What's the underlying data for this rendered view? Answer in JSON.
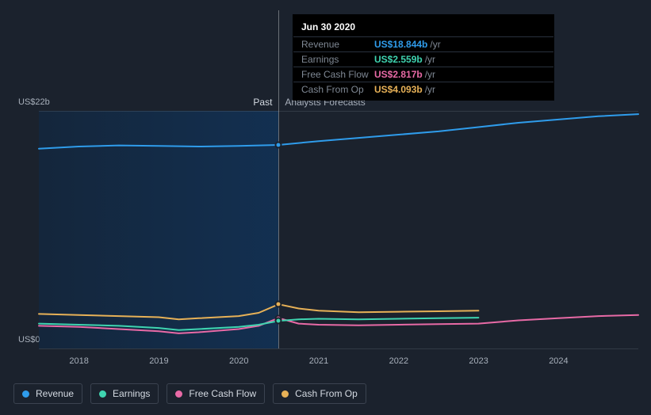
{
  "chart": {
    "background_color": "#1b222d",
    "text_color": "#a8b0bb",
    "grid_color": "rgba(120,130,145,0.25)",
    "past_bg_gradient": [
      "rgba(11,43,77,0.45)",
      "rgba(14,55,100,0.65)"
    ],
    "section_labels": {
      "past": "Past",
      "forecast": "Analysts Forecasts"
    },
    "x": {
      "domain": [
        2017.5,
        2025
      ],
      "ticks": [
        2018,
        2019,
        2020,
        2021,
        2022,
        2023,
        2024
      ],
      "tick_labels": [
        "2018",
        "2019",
        "2020",
        "2021",
        "2022",
        "2023",
        "2024"
      ],
      "past_end": 2020.5,
      "cursor": 2020.5,
      "label_fontsize": 11
    },
    "y": {
      "domain": [
        0,
        22
      ],
      "ticks": [
        0,
        22
      ],
      "tick_labels": [
        "US$0",
        "US$22b"
      ],
      "label_fontsize": 11
    },
    "series": [
      {
        "key": "revenue",
        "name": "Revenue",
        "color": "#2f9ceb",
        "line_width": 2,
        "fill_opacity": 0.0,
        "points": [
          [
            2017.5,
            18.5
          ],
          [
            2018,
            18.7
          ],
          [
            2018.5,
            18.8
          ],
          [
            2019,
            18.75
          ],
          [
            2019.5,
            18.7
          ],
          [
            2020,
            18.75
          ],
          [
            2020.25,
            18.8
          ],
          [
            2020.5,
            18.844
          ],
          [
            2021,
            19.2
          ],
          [
            2021.5,
            19.5
          ],
          [
            2022,
            19.8
          ],
          [
            2022.5,
            20.1
          ],
          [
            2023,
            20.5
          ],
          [
            2023.5,
            20.9
          ],
          [
            2024,
            21.2
          ],
          [
            2024.5,
            21.5
          ],
          [
            2025,
            21.7
          ]
        ]
      },
      {
        "key": "cash_from_op",
        "name": "Cash From Op",
        "color": "#e7b157",
        "line_width": 2,
        "end_x": 2023,
        "points": [
          [
            2017.5,
            3.2
          ],
          [
            2018,
            3.1
          ],
          [
            2018.5,
            3.0
          ],
          [
            2019,
            2.9
          ],
          [
            2019.25,
            2.7
          ],
          [
            2019.5,
            2.8
          ],
          [
            2020,
            3.0
          ],
          [
            2020.25,
            3.3
          ],
          [
            2020.5,
            4.093
          ],
          [
            2020.75,
            3.7
          ],
          [
            2021,
            3.5
          ],
          [
            2021.5,
            3.35
          ],
          [
            2022,
            3.4
          ],
          [
            2022.5,
            3.45
          ],
          [
            2023,
            3.5
          ]
        ]
      },
      {
        "key": "free_cash_flow",
        "name": "Free Cash Flow",
        "color": "#e86aa6",
        "line_width": 2,
        "points": [
          [
            2017.5,
            2.1
          ],
          [
            2018,
            2.0
          ],
          [
            2018.5,
            1.8
          ],
          [
            2019,
            1.6
          ],
          [
            2019.25,
            1.4
          ],
          [
            2019.5,
            1.5
          ],
          [
            2020,
            1.8
          ],
          [
            2020.25,
            2.1
          ],
          [
            2020.5,
            2.817
          ],
          [
            2020.75,
            2.3
          ],
          [
            2021,
            2.2
          ],
          [
            2021.5,
            2.15
          ],
          [
            2022,
            2.2
          ],
          [
            2022.5,
            2.25
          ],
          [
            2023,
            2.3
          ],
          [
            2023.5,
            2.6
          ],
          [
            2024,
            2.8
          ],
          [
            2024.5,
            3.0
          ],
          [
            2025,
            3.1
          ]
        ]
      },
      {
        "key": "earnings",
        "name": "Earnings",
        "color": "#3fd4b0",
        "line_width": 2,
        "end_x": 2023,
        "points": [
          [
            2017.5,
            2.3
          ],
          [
            2018,
            2.2
          ],
          [
            2018.5,
            2.1
          ],
          [
            2019,
            1.9
          ],
          [
            2019.25,
            1.7
          ],
          [
            2019.5,
            1.8
          ],
          [
            2020,
            2.0
          ],
          [
            2020.25,
            2.2
          ],
          [
            2020.5,
            2.559
          ],
          [
            2020.75,
            2.7
          ],
          [
            2021,
            2.75
          ],
          [
            2021.5,
            2.7
          ],
          [
            2022,
            2.75
          ],
          [
            2022.5,
            2.8
          ],
          [
            2023,
            2.85
          ]
        ]
      }
    ],
    "cursor_markers": [
      {
        "series": "revenue",
        "x": 2020.5,
        "y": 18.844,
        "color": "#2f9ceb"
      },
      {
        "series": "cash_from_op",
        "x": 2020.5,
        "y": 4.093,
        "color": "#e7b157"
      },
      {
        "series": "free_cash_flow",
        "x": 2020.5,
        "y": 2.817,
        "color": "#e86aa6"
      },
      {
        "series": "earnings",
        "x": 2020.5,
        "y": 2.559,
        "color": "#3fd4b0"
      }
    ],
    "legend_order": [
      "revenue",
      "earnings",
      "free_cash_flow",
      "cash_from_op"
    ]
  },
  "tooltip": {
    "title": "Jun 30 2020",
    "rows": [
      {
        "label": "Revenue",
        "value": "US$18.844b",
        "unit": "/yr",
        "color": "#2f9ceb"
      },
      {
        "label": "Earnings",
        "value": "US$2.559b",
        "unit": "/yr",
        "color": "#3fd4b0"
      },
      {
        "label": "Free Cash Flow",
        "value": "US$2.817b",
        "unit": "/yr",
        "color": "#e86aa6"
      },
      {
        "label": "Cash From Op",
        "value": "US$4.093b",
        "unit": "/yr",
        "color": "#e7b157"
      }
    ]
  }
}
